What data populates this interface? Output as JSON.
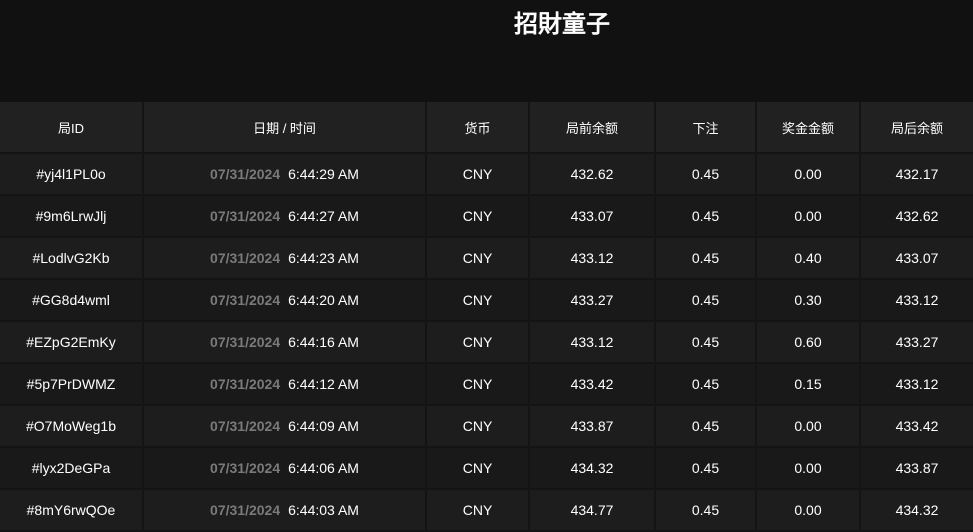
{
  "title": "招財童子",
  "columns": [
    "局ID",
    "日期 / 时间",
    "货币",
    "局前余额",
    "下注",
    "奖金金额",
    "局后余额"
  ],
  "rows": [
    {
      "id": "#yj4l1PL0o",
      "date": "07/31/2024",
      "time": "6:44:29 AM",
      "currency": "CNY",
      "before": "432.62",
      "bet": "0.45",
      "win": "0.00",
      "after": "432.17"
    },
    {
      "id": "#9m6LrwJlj",
      "date": "07/31/2024",
      "time": "6:44:27 AM",
      "currency": "CNY",
      "before": "433.07",
      "bet": "0.45",
      "win": "0.00",
      "after": "432.62"
    },
    {
      "id": "#LodlvG2Kb",
      "date": "07/31/2024",
      "time": "6:44:23 AM",
      "currency": "CNY",
      "before": "433.12",
      "bet": "0.45",
      "win": "0.40",
      "after": "433.07"
    },
    {
      "id": "#GG8d4wml",
      "date": "07/31/2024",
      "time": "6:44:20 AM",
      "currency": "CNY",
      "before": "433.27",
      "bet": "0.45",
      "win": "0.30",
      "after": "433.12"
    },
    {
      "id": "#EZpG2EmKy",
      "date": "07/31/2024",
      "time": "6:44:16 AM",
      "currency": "CNY",
      "before": "433.12",
      "bet": "0.45",
      "win": "0.60",
      "after": "433.27"
    },
    {
      "id": "#5p7PrDWMZ",
      "date": "07/31/2024",
      "time": "6:44:12 AM",
      "currency": "CNY",
      "before": "433.42",
      "bet": "0.45",
      "win": "0.15",
      "after": "433.12"
    },
    {
      "id": "#O7MoWeg1b",
      "date": "07/31/2024",
      "time": "6:44:09 AM",
      "currency": "CNY",
      "before": "433.87",
      "bet": "0.45",
      "win": "0.00",
      "after": "433.42"
    },
    {
      "id": "#lyx2DeGPa",
      "date": "07/31/2024",
      "time": "6:44:06 AM",
      "currency": "CNY",
      "before": "434.32",
      "bet": "0.45",
      "win": "0.00",
      "after": "433.87"
    },
    {
      "id": "#8mY6rwQOe",
      "date": "07/31/2024",
      "time": "6:44:03 AM",
      "currency": "CNY",
      "before": "434.77",
      "bet": "0.45",
      "win": "0.00",
      "after": "434.32"
    }
  ]
}
